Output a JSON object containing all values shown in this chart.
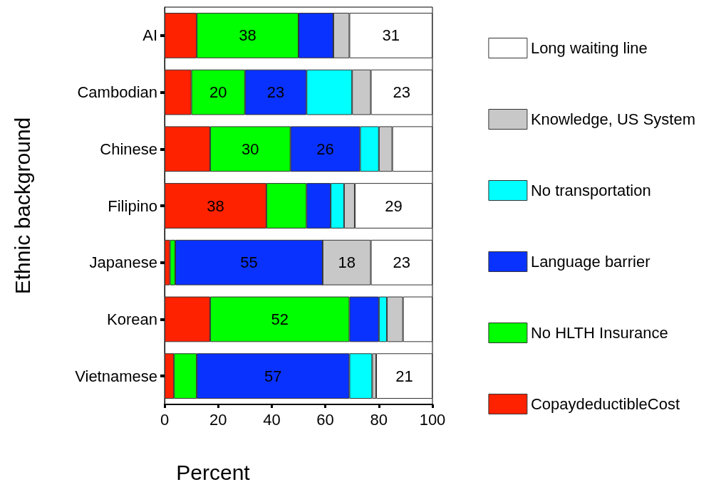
{
  "chart_data": {
    "type": "bar",
    "orientation": "horizontal",
    "stacked": true,
    "categories": [
      "AI",
      "Cambodian",
      "Chinese",
      "Filipino",
      "Japanese",
      "Korean",
      "Vietnamese"
    ],
    "series": [
      {
        "name": "CopaydeductibleCost",
        "color": "#ff2200",
        "values": [
          12,
          10,
          17,
          38,
          2,
          17,
          3.5
        ],
        "value_labels": [
          null,
          null,
          null,
          "38",
          null,
          null,
          null
        ]
      },
      {
        "name": "No HLTH Insurance",
        "color": "#00ff00",
        "values": [
          38,
          20,
          30,
          15,
          2,
          52,
          8.5
        ],
        "value_labels": [
          "38",
          "20",
          "30",
          null,
          null,
          "52",
          null
        ]
      },
      {
        "name": "Language barrier",
        "color": "#0a32ff",
        "values": [
          13,
          23,
          26,
          9,
          55,
          11,
          57
        ],
        "value_labels": [
          null,
          "23",
          "26",
          null,
          "55",
          null,
          "57"
        ]
      },
      {
        "name": "No transportation",
        "color": "#00ffff",
        "values": [
          0,
          17,
          7,
          5,
          0,
          3,
          8.5
        ]
      },
      {
        "name": "Knowledge, US System",
        "color": "#c8c8c8",
        "values": [
          6,
          7,
          5,
          4,
          18,
          6,
          1.5
        ],
        "value_labels": [
          null,
          null,
          null,
          null,
          "18",
          null,
          null
        ]
      },
      {
        "name": "Long waiting line",
        "color": "#ffffff",
        "values": [
          31,
          23,
          15,
          29,
          23,
          11,
          21
        ],
        "value_labels": [
          "31",
          "23",
          null,
          "29",
          "23",
          null,
          "21"
        ]
      }
    ],
    "xlim": [
      0,
      100
    ],
    "xticks": [
      0,
      20,
      40,
      60,
      80,
      100
    ],
    "xlabel": "Percent",
    "ylabel": "Ethnic background",
    "grid": false,
    "legend": "right"
  }
}
